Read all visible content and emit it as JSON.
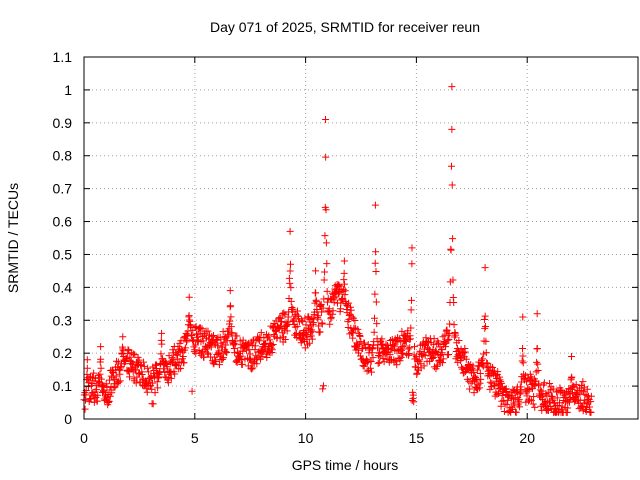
{
  "chart_data": {
    "type": "scatter",
    "title": "Day 071 of 2025, SRMTID for receiver reun",
    "xlabel": "GPS time / hours",
    "ylabel": "SRMTID / TECUs",
    "xlim": [
      0,
      25
    ],
    "ylim": [
      0,
      1.1
    ],
    "xticks": [
      0,
      5,
      10,
      15,
      20
    ],
    "xtick_labels": [
      "0",
      "5",
      "10",
      "15",
      "20"
    ],
    "yticks": [
      0,
      0.1,
      0.2,
      0.3,
      0.4,
      0.5,
      0.6,
      0.7,
      0.8,
      0.9,
      1,
      1.1
    ],
    "ytick_labels": [
      "0",
      "0.1",
      "0.2",
      "0.3",
      "0.4",
      "0.5",
      "0.6",
      "0.7",
      "0.8",
      "0.9",
      "1",
      "1.1"
    ],
    "grid": true,
    "marker": "plus",
    "color": "#ff0000",
    "series": [
      {
        "name": "SRMTID",
        "trend": [
          [
            0.0,
            0.06
          ],
          [
            0.3,
            0.1
          ],
          [
            0.6,
            0.09
          ],
          [
            1.0,
            0.07
          ],
          [
            1.3,
            0.12
          ],
          [
            1.7,
            0.16
          ],
          [
            2.0,
            0.17
          ],
          [
            2.5,
            0.14
          ],
          [
            3.0,
            0.11
          ],
          [
            3.5,
            0.13
          ],
          [
            4.0,
            0.17
          ],
          [
            4.5,
            0.21
          ],
          [
            5.0,
            0.24
          ],
          [
            5.5,
            0.23
          ],
          [
            6.0,
            0.2
          ],
          [
            6.5,
            0.24
          ],
          [
            7.0,
            0.21
          ],
          [
            7.5,
            0.19
          ],
          [
            8.0,
            0.22
          ],
          [
            8.5,
            0.24
          ],
          [
            9.0,
            0.28
          ],
          [
            9.5,
            0.3
          ],
          [
            10.0,
            0.26
          ],
          [
            10.5,
            0.3
          ],
          [
            11.0,
            0.32
          ],
          [
            11.5,
            0.38
          ],
          [
            12.0,
            0.3
          ],
          [
            12.5,
            0.2
          ],
          [
            13.0,
            0.18
          ],
          [
            13.5,
            0.22
          ],
          [
            14.0,
            0.2
          ],
          [
            14.5,
            0.24
          ],
          [
            15.0,
            0.17
          ],
          [
            15.5,
            0.22
          ],
          [
            16.0,
            0.19
          ],
          [
            16.5,
            0.24
          ],
          [
            17.0,
            0.2
          ],
          [
            17.5,
            0.12
          ],
          [
            18.0,
            0.14
          ],
          [
            18.5,
            0.12
          ],
          [
            19.0,
            0.06
          ],
          [
            19.5,
            0.06
          ],
          [
            20.0,
            0.1
          ],
          [
            20.5,
            0.07
          ],
          [
            21.0,
            0.07
          ],
          [
            21.5,
            0.05
          ],
          [
            22.0,
            0.06
          ],
          [
            22.5,
            0.07
          ],
          [
            22.9,
            0.05
          ]
        ],
        "spikes": [
          {
            "x": 0.15,
            "y": 0.18,
            "width": 0.08
          },
          {
            "x": 0.75,
            "y": 0.22,
            "width": 0.1
          },
          {
            "x": 1.75,
            "y": 0.25,
            "width": 0.1
          },
          {
            "x": 3.5,
            "y": 0.26,
            "width": 0.15
          },
          {
            "x": 4.75,
            "y": 0.37,
            "width": 0.2
          },
          {
            "x": 6.6,
            "y": 0.39,
            "width": 0.15
          },
          {
            "x": 9.3,
            "y": 0.57,
            "width": 0.12
          },
          {
            "x": 10.45,
            "y": 0.45,
            "width": 0.12
          },
          {
            "x": 10.9,
            "y": 0.91,
            "width": 0.12
          },
          {
            "x": 11.75,
            "y": 0.48,
            "width": 0.15
          },
          {
            "x": 13.15,
            "y": 0.65,
            "width": 0.12
          },
          {
            "x": 14.8,
            "y": 0.52,
            "width": 0.12
          },
          {
            "x": 16.6,
            "y": 1.01,
            "width": 0.15
          },
          {
            "x": 18.1,
            "y": 0.46,
            "width": 0.12
          },
          {
            "x": 19.8,
            "y": 0.31,
            "width": 0.1
          },
          {
            "x": 20.45,
            "y": 0.32,
            "width": 0.1
          },
          {
            "x": 22.0,
            "y": 0.19,
            "width": 0.08
          }
        ],
        "dips": [
          {
            "x": 10.8,
            "y": 0.09
          },
          {
            "x": 14.85,
            "y": 0.05
          },
          {
            "x": 4.9,
            "y": 0.06
          },
          {
            "x": 3.1,
            "y": 0.04
          },
          {
            "x": 0.5,
            "y": 0.03
          }
        ]
      }
    ]
  }
}
